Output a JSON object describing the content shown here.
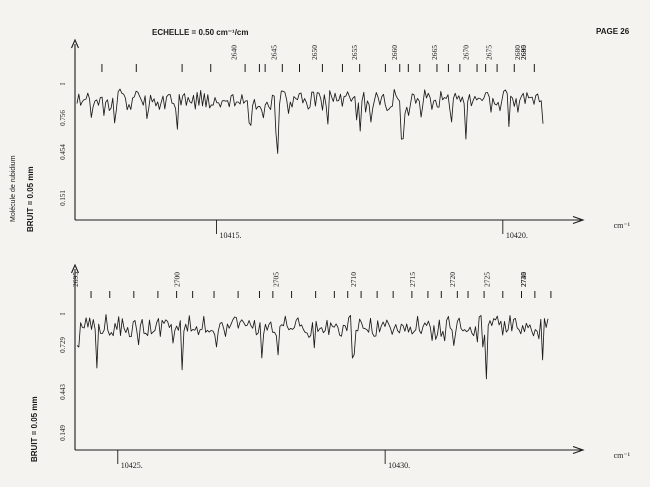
{
  "page_label": "PAGE 26",
  "scale_label": "ECHELLE = 0.50 cm⁻¹/cm",
  "molecule_label": "Molécule de rubidium",
  "noise_label": "BRUIT = 0.05 mm",
  "colors": {
    "ink": "#1b1b1b",
    "paper": "#f4f3ef"
  },
  "chart_data": [
    {
      "type": "line",
      "title": "",
      "xlabel": "cm⁻¹",
      "intensity_symbol": "I",
      "xlim": [
        10412.53,
        10421.4
      ],
      "x_tick_labels": [
        {
          "x": 10415.0,
          "label": "10415."
        },
        {
          "x": 10420.0,
          "label": "10420."
        }
      ],
      "y_tick_labels": [
        "0.756",
        "0.454",
        "0.151"
      ],
      "line_numbers": [
        "2640",
        "2645",
        "2650",
        "2655",
        "2660",
        "2665",
        "2670",
        "2675",
        "2680",
        "2685",
        "2690"
      ],
      "line_number_x": [
        10415.3,
        10416.0,
        10416.7,
        10417.4,
        10418.1,
        10418.8,
        10419.35,
        10419.75,
        10420.25,
        10422.0,
        10422.8
      ],
      "assignment_ticks_x": [
        10413.0,
        10413.6,
        10414.4,
        10414.9,
        10415.5,
        10415.75,
        10415.85,
        10416.15,
        10416.45,
        10416.85,
        10417.2,
        10417.5,
        10417.95,
        10418.2,
        10418.35,
        10418.55,
        10418.85,
        10419.05,
        10419.25,
        10419.55,
        10419.7,
        10419.9,
        10420.2,
        10420.55,
        10420.95,
        10421.35,
        10421.75,
        10422.05,
        10422.3,
        10422.55,
        10422.9,
        10423.3
      ],
      "absorption_x": [
        10415.6,
        10416.05,
        10416.95,
        10417.5,
        10418.25,
        10419.35,
        10420.1,
        10420.8,
        10422.8
      ],
      "baseline_intensity": 0.756
    },
    {
      "type": "line",
      "title": "",
      "xlabel": "cm⁻¹",
      "intensity_symbol": "I",
      "xlim": [
        10424.2,
        10433.7
      ],
      "x_tick_labels": [
        {
          "x": 10425.0,
          "label": "10425."
        },
        {
          "x": 10430.0,
          "label": "10430."
        }
      ],
      "y_tick_labels": [
        "0.729",
        "0.443",
        "0.149"
      ],
      "line_numbers": [
        "2695",
        "2700",
        "2705",
        "2710",
        "2715",
        "2720",
        "2725",
        "2730",
        "2735",
        "2740"
      ],
      "line_number_x": [
        10424.2,
        10426.1,
        10427.95,
        10429.4,
        10430.5,
        10431.25,
        10431.9,
        10432.95,
        10433.35,
        10434.3
      ],
      "assignment_ticks_x": [
        10424.5,
        10424.85,
        10425.3,
        10425.75,
        10426.1,
        10426.4,
        10426.8,
        10427.25,
        10427.65,
        10427.9,
        10428.25,
        10428.7,
        10429.05,
        10429.3,
        10429.55,
        10429.85,
        10430.15,
        10430.5,
        10430.8,
        10431.05,
        10431.35,
        10431.55,
        10431.85,
        10432.2,
        10432.55,
        10432.8,
        10433.1,
        10433.45,
        10433.8,
        10434.15,
        10434.5,
        10434.8,
        10435.25,
        10435.6
      ],
      "absorption_x": [
        10424.6,
        10425.4,
        10426.2,
        10427.7,
        10429.4,
        10431.9,
        10432.95,
        10434.55
      ],
      "baseline_intensity": 0.729
    }
  ]
}
